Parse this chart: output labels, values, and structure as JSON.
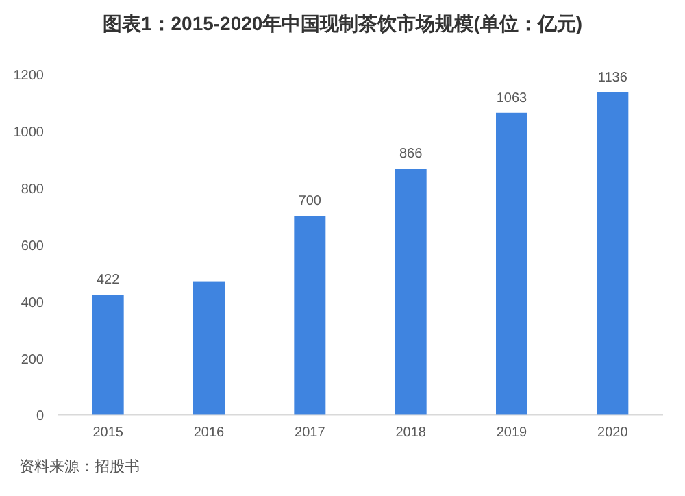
{
  "chart_data": {
    "type": "bar",
    "title": "图表1：2015-2020年中国现制茶饮市场规模(单位：亿元)",
    "categories": [
      "2015",
      "2016",
      "2017",
      "2018",
      "2019",
      "2020"
    ],
    "values": [
      422,
      470,
      700,
      866,
      1063,
      1136
    ],
    "value_labels": [
      "422",
      null,
      "700",
      "866",
      "1063",
      "1136"
    ],
    "color": "#3f84e0",
    "ylim": [
      0,
      1200
    ],
    "yticks": [
      0,
      200,
      400,
      600,
      800,
      1000,
      1200
    ],
    "annotations": [
      "资料来源：招股书"
    ]
  }
}
